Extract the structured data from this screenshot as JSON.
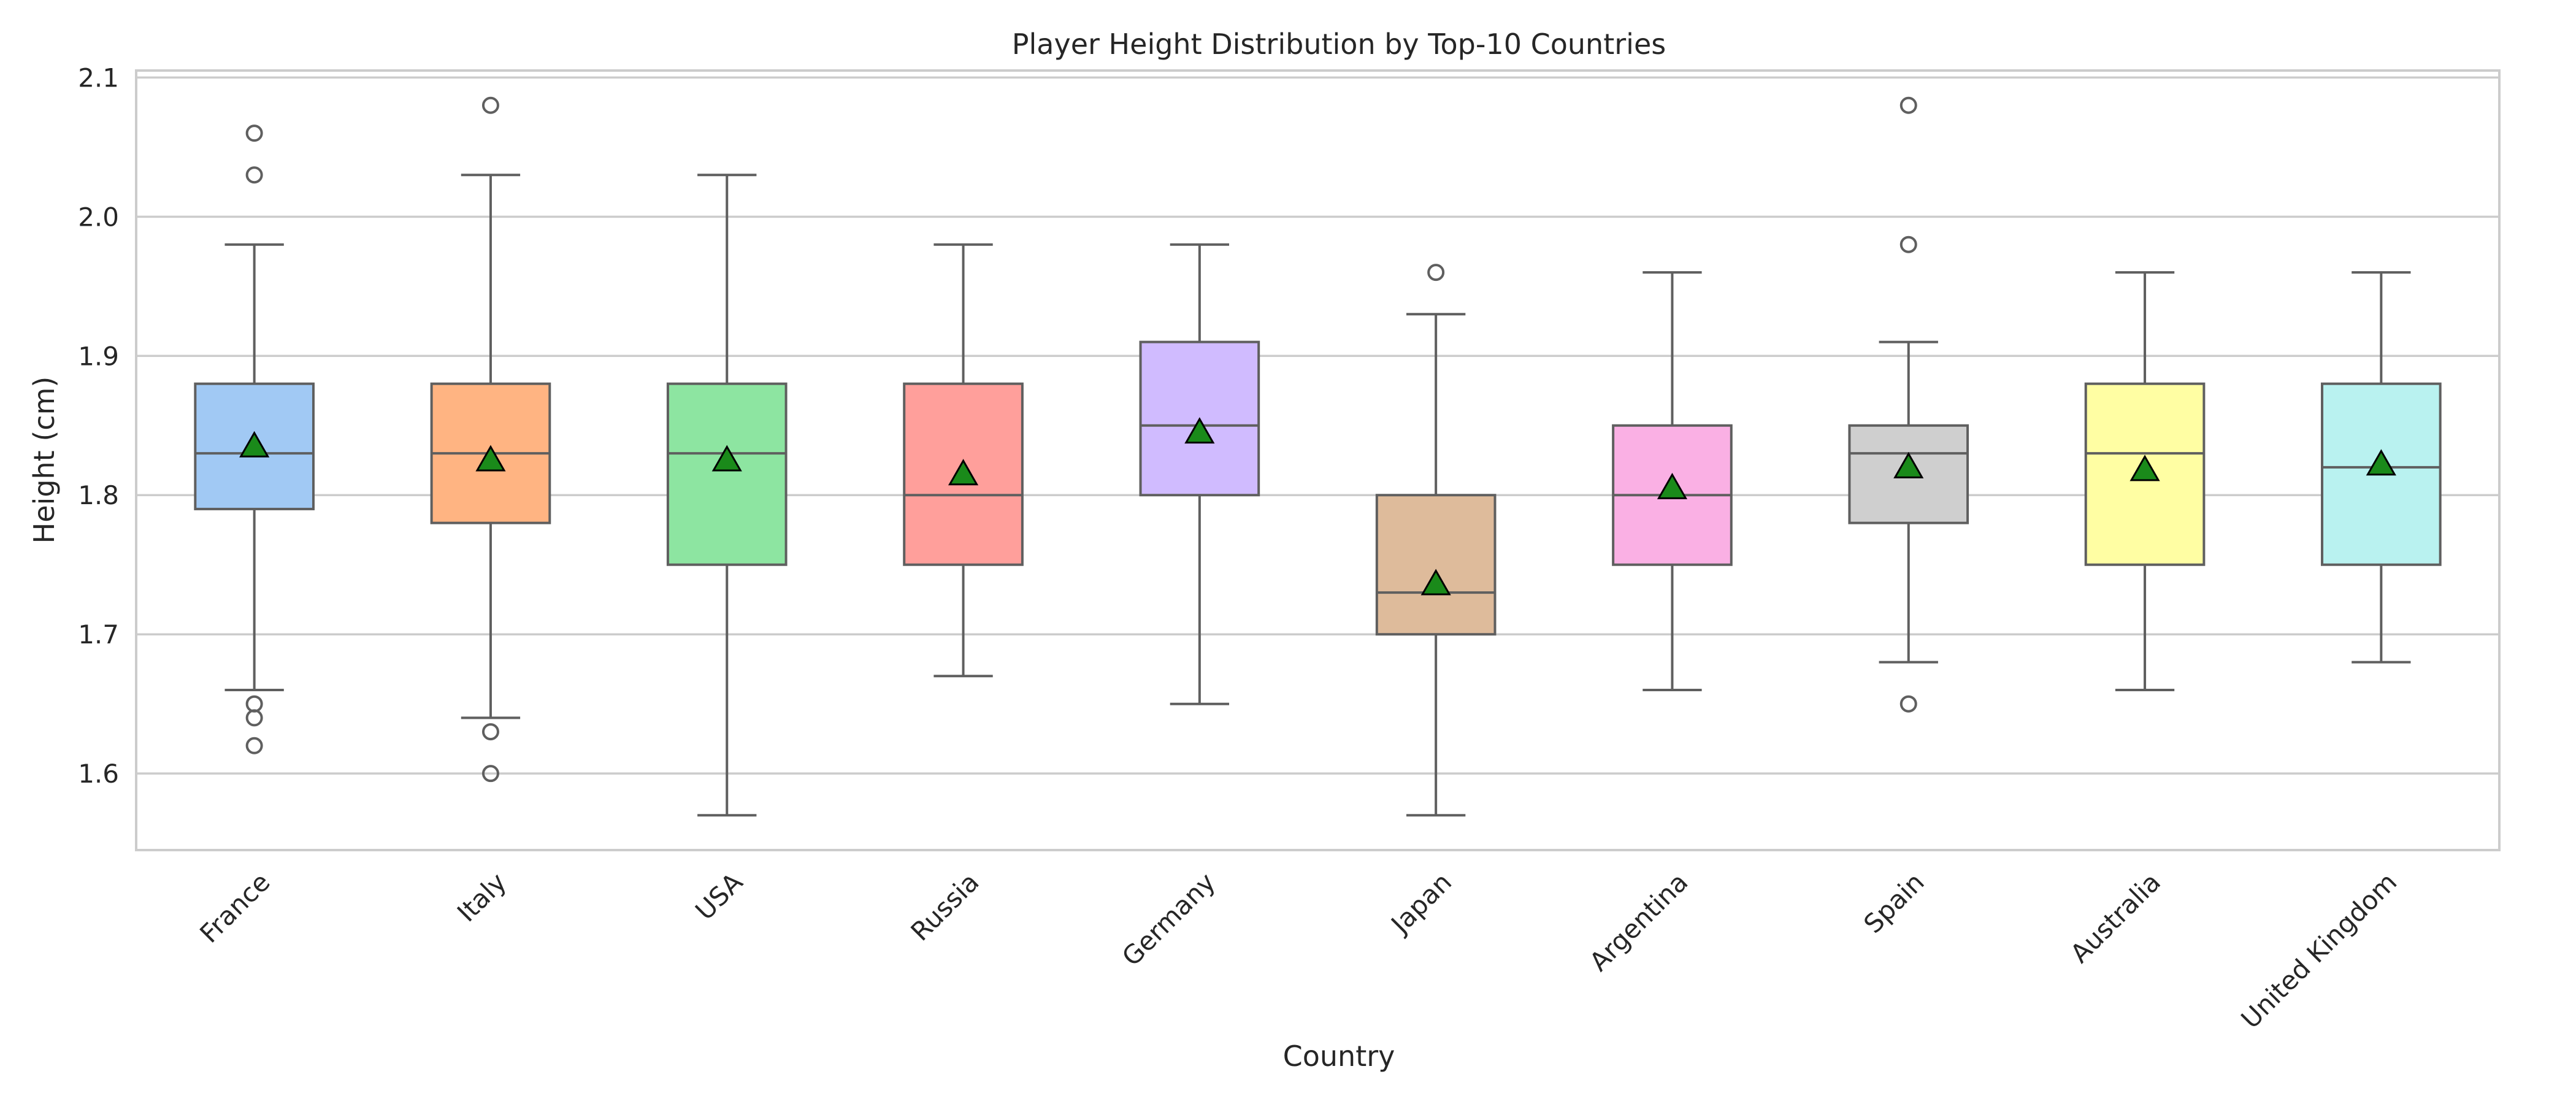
{
  "chart_data": {
    "type": "box",
    "title": "Player Height Distribution by Top-10 Countries",
    "xlabel": "Country",
    "ylabel": "Height (cm)",
    "ylim": [
      1.545,
      2.105
    ],
    "yticks": [
      "1.6",
      "1.7",
      "1.8",
      "1.9",
      "2.0",
      "2.1"
    ],
    "ytick_values": [
      1.6,
      1.7,
      1.8,
      1.9,
      2.0,
      2.1
    ],
    "grid": true,
    "legend": "none",
    "mean_marker": {
      "shape": "triangle",
      "color": "#1a8a1a"
    },
    "categories": [
      "France",
      "Italy",
      "USA",
      "Russia",
      "Germany",
      "Japan",
      "Argentina",
      "Spain",
      "Australia",
      "United Kingdom"
    ],
    "boxes": [
      {
        "name": "France",
        "color": "#a1c9f4",
        "whisker_low": 1.66,
        "q1": 1.79,
        "median": 1.83,
        "q3": 1.88,
        "whisker_high": 1.98,
        "mean": 1.835,
        "outliers": [
          1.62,
          1.64,
          1.65,
          2.03,
          2.06
        ]
      },
      {
        "name": "Italy",
        "color": "#ffb482",
        "whisker_low": 1.64,
        "q1": 1.78,
        "median": 1.83,
        "q3": 1.88,
        "whisker_high": 2.03,
        "mean": 1.825,
        "outliers": [
          1.6,
          1.63,
          2.08
        ]
      },
      {
        "name": "USA",
        "color": "#8de5a1",
        "whisker_low": 1.57,
        "q1": 1.75,
        "median": 1.83,
        "q3": 1.88,
        "whisker_high": 2.03,
        "mean": 1.825,
        "outliers": []
      },
      {
        "name": "Russia",
        "color": "#ff9f9b",
        "whisker_low": 1.67,
        "q1": 1.75,
        "median": 1.8,
        "q3": 1.88,
        "whisker_high": 1.98,
        "mean": 1.815,
        "outliers": []
      },
      {
        "name": "Germany",
        "color": "#d0bbff",
        "whisker_low": 1.65,
        "q1": 1.8,
        "median": 1.85,
        "q3": 1.91,
        "whisker_high": 1.98,
        "mean": 1.845,
        "outliers": []
      },
      {
        "name": "Japan",
        "color": "#debb9b",
        "whisker_low": 1.57,
        "q1": 1.7,
        "median": 1.73,
        "q3": 1.8,
        "whisker_high": 1.93,
        "mean": 1.736,
        "outliers": [
          1.96
        ]
      },
      {
        "name": "Argentina",
        "color": "#fab0e4",
        "whisker_low": 1.66,
        "q1": 1.75,
        "median": 1.8,
        "q3": 1.85,
        "whisker_high": 1.96,
        "mean": 1.805,
        "outliers": []
      },
      {
        "name": "Spain",
        "color": "#cfcfcf",
        "whisker_low": 1.68,
        "q1": 1.78,
        "median": 1.83,
        "q3": 1.85,
        "whisker_high": 1.91,
        "mean": 1.82,
        "outliers": [
          1.65,
          1.98,
          2.08
        ]
      },
      {
        "name": "Australia",
        "color": "#fffea3",
        "whisker_low": 1.66,
        "q1": 1.75,
        "median": 1.83,
        "q3": 1.88,
        "whisker_high": 1.96,
        "mean": 1.818,
        "outliers": []
      },
      {
        "name": "United Kingdom",
        "color": "#b9f2f0",
        "whisker_low": 1.68,
        "q1": 1.75,
        "median": 1.82,
        "q3": 1.88,
        "whisker_high": 1.96,
        "mean": 1.822,
        "outliers": []
      }
    ]
  }
}
